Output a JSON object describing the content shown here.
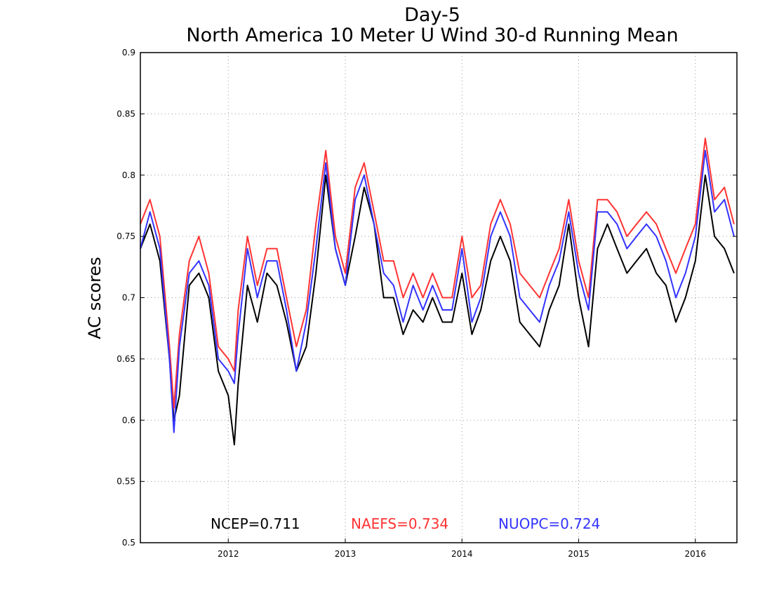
{
  "chart_data": {
    "type": "line",
    "title": "Day-5",
    "subtitle": "North America 10 Meter U Wind 30-d Running Mean",
    "xlabel": "",
    "ylabel": "AC scores",
    "ylim": [
      0.5,
      0.9
    ],
    "yticks": [
      "0.5",
      "0.55",
      "0.6",
      "0.65",
      "0.7",
      "0.75",
      "0.8",
      "0.85",
      "0.9"
    ],
    "xlim": [
      "2011-04-01",
      "2016-05-10"
    ],
    "xticks": [
      {
        "date": "2012-01-01",
        "label": "2012"
      },
      {
        "date": "2013-01-01",
        "label": "2013"
      },
      {
        "date": "2014-01-01",
        "label": "2014"
      },
      {
        "date": "2015-01-01",
        "label": "2015"
      },
      {
        "date": "2016-01-01",
        "label": "2016"
      }
    ],
    "grid": true,
    "legend_position": "bottom",
    "x": [
      "2011-04-01",
      "2011-05-01",
      "2011-06-01",
      "2011-07-01",
      "2011-07-15",
      "2011-08-01",
      "2011-09-01",
      "2011-10-01",
      "2011-11-01",
      "2011-12-01",
      "2012-01-01",
      "2012-01-20",
      "2012-02-01",
      "2012-03-01",
      "2012-04-01",
      "2012-05-01",
      "2012-06-01",
      "2012-07-01",
      "2012-08-01",
      "2012-09-01",
      "2012-10-01",
      "2012-11-01",
      "2012-12-01",
      "2013-01-01",
      "2013-02-01",
      "2013-03-01",
      "2013-04-01",
      "2013-05-01",
      "2013-06-01",
      "2013-07-01",
      "2013-08-01",
      "2013-09-01",
      "2013-10-01",
      "2013-11-01",
      "2013-12-01",
      "2014-01-01",
      "2014-02-01",
      "2014-03-01",
      "2014-04-01",
      "2014-05-01",
      "2014-06-01",
      "2014-07-01",
      "2014-08-01",
      "2014-09-01",
      "2014-10-01",
      "2014-11-01",
      "2014-12-01",
      "2015-01-01",
      "2015-02-01",
      "2015-03-01",
      "2015-04-01",
      "2015-05-01",
      "2015-06-01",
      "2015-07-01",
      "2015-08-01",
      "2015-09-01",
      "2015-10-01",
      "2015-11-01",
      "2015-12-01",
      "2016-01-01",
      "2016-02-01",
      "2016-03-01",
      "2016-04-01",
      "2016-05-01"
    ],
    "series": [
      {
        "name": "NCEP",
        "color": "#000000",
        "values": [
          0.74,
          0.76,
          0.73,
          0.65,
          0.6,
          0.62,
          0.71,
          0.72,
          0.7,
          0.64,
          0.62,
          0.58,
          0.63,
          0.71,
          0.68,
          0.72,
          0.71,
          0.68,
          0.64,
          0.66,
          0.72,
          0.8,
          0.74,
          0.71,
          0.75,
          0.79,
          0.76,
          0.7,
          0.7,
          0.67,
          0.69,
          0.68,
          0.7,
          0.68,
          0.68,
          0.72,
          0.67,
          0.69,
          0.73,
          0.75,
          0.73,
          0.68,
          0.67,
          0.66,
          0.69,
          0.71,
          0.76,
          0.7,
          0.66,
          0.74,
          0.76,
          0.74,
          0.72,
          0.73,
          0.74,
          0.72,
          0.71,
          0.68,
          0.7,
          0.73,
          0.8,
          0.75,
          0.74,
          0.72
        ]
      },
      {
        "name": "NAEFS",
        "color": "#ff3333",
        "values": [
          0.76,
          0.78,
          0.75,
          0.66,
          0.61,
          0.67,
          0.73,
          0.75,
          0.72,
          0.66,
          0.65,
          0.64,
          0.69,
          0.75,
          0.71,
          0.74,
          0.74,
          0.7,
          0.66,
          0.69,
          0.76,
          0.82,
          0.75,
          0.72,
          0.79,
          0.81,
          0.77,
          0.73,
          0.73,
          0.7,
          0.72,
          0.7,
          0.72,
          0.7,
          0.7,
          0.75,
          0.7,
          0.71,
          0.76,
          0.78,
          0.76,
          0.72,
          0.71,
          0.7,
          0.72,
          0.74,
          0.78,
          0.73,
          0.7,
          0.78,
          0.78,
          0.77,
          0.75,
          0.76,
          0.77,
          0.76,
          0.74,
          0.72,
          0.74,
          0.76,
          0.83,
          0.78,
          0.79,
          0.76
        ]
      },
      {
        "name": "NUOPC",
        "color": "#3333ff",
        "values": [
          0.74,
          0.77,
          0.74,
          0.65,
          0.59,
          0.66,
          0.72,
          0.73,
          0.71,
          0.65,
          0.64,
          0.63,
          0.67,
          0.74,
          0.7,
          0.73,
          0.73,
          0.69,
          0.64,
          0.68,
          0.74,
          0.81,
          0.74,
          0.71,
          0.78,
          0.8,
          0.76,
          0.72,
          0.71,
          0.68,
          0.71,
          0.69,
          0.71,
          0.69,
          0.69,
          0.74,
          0.68,
          0.7,
          0.75,
          0.77,
          0.75,
          0.7,
          0.69,
          0.68,
          0.71,
          0.73,
          0.77,
          0.72,
          0.69,
          0.77,
          0.77,
          0.76,
          0.74,
          0.75,
          0.76,
          0.75,
          0.73,
          0.7,
          0.72,
          0.75,
          0.82,
          0.77,
          0.78,
          0.75
        ]
      }
    ],
    "legend": [
      {
        "label": "NCEP=0.711",
        "color": "#000000"
      },
      {
        "label": "NAEFS=0.734",
        "color": "#ff3333"
      },
      {
        "label": "NUOPC=0.724",
        "color": "#3333ff"
      }
    ]
  }
}
